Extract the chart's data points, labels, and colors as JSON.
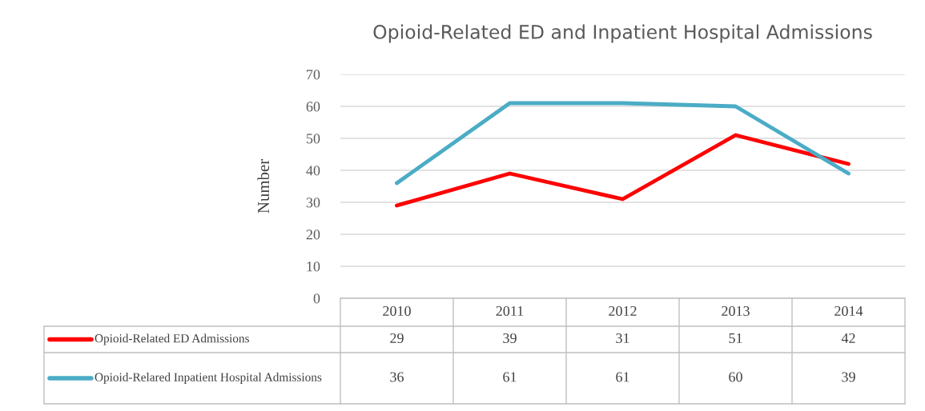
{
  "chart_data": {
    "type": "line",
    "title": "Opioid-Related ED and Inpatient Hospital Admissions",
    "ylabel": "Number",
    "categories": [
      "2010",
      "2011",
      "2012",
      "2013",
      "2014"
    ],
    "series": [
      {
        "name": "Opioid-Related ED Admissions",
        "color": "#ff0000",
        "values": [
          29,
          39,
          31,
          51,
          42
        ]
      },
      {
        "name": "Opioid-Relared Inpatient Hospital Admissions",
        "color": "#4bacc6",
        "values": [
          36,
          61,
          61,
          60,
          39
        ]
      }
    ],
    "ylim": [
      0,
      70
    ],
    "yticks": [
      0,
      10,
      20,
      30,
      40,
      50,
      60,
      70
    ],
    "grid": "y",
    "legend": "bottom",
    "data_labels": true,
    "marker": "none",
    "line_style": "solid"
  }
}
